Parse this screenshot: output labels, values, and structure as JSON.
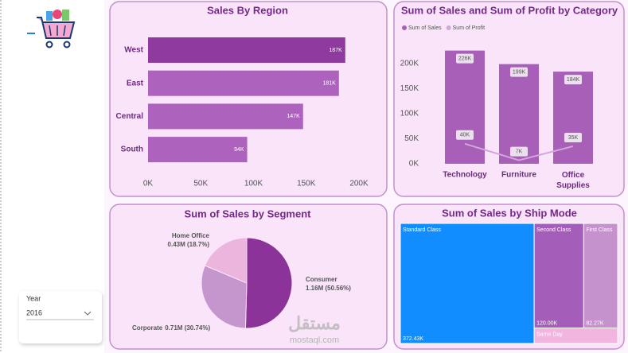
{
  "chart_data": [
    {
      "type": "bar",
      "orientation": "horizontal",
      "title": "Sales By Region",
      "categories": [
        "West",
        "East",
        "Central",
        "South"
      ],
      "values": [
        187000,
        181000,
        147000,
        94000
      ],
      "value_labels": [
        "187K",
        "181K",
        "147K",
        "94K"
      ],
      "colors": [
        "#8e3a9e",
        "#ad62bd",
        "#ad62bd",
        "#ad62bd"
      ],
      "xlim": [
        0,
        200000
      ],
      "xticks": [
        {
          "value": 0,
          "label": "0K"
        },
        {
          "value": 50000,
          "label": "50K"
        },
        {
          "value": 100000,
          "label": "100K"
        },
        {
          "value": 150000,
          "label": "150K"
        },
        {
          "value": 200000,
          "label": "200K"
        }
      ]
    },
    {
      "type": "combo",
      "title": "Sum of Sales and Sum of Profit by Category",
      "categories": [
        "Technology",
        "Furniture",
        "Office Supplies"
      ],
      "series": [
        {
          "name": "Sum of Sales",
          "type": "bar",
          "color": "#a75fb8",
          "values": [
            226000,
            199000,
            184000
          ],
          "value_labels": [
            "226K",
            "199K",
            "184K"
          ]
        },
        {
          "name": "Sum of Profit",
          "type": "line",
          "color": "#d2a6dc",
          "values": [
            40000,
            7000,
            35000
          ],
          "value_labels": [
            "40K",
            "7K",
            "35K"
          ]
        }
      ],
      "ylim": [
        0,
        250000
      ],
      "yticks": [
        {
          "value": 0,
          "label": "0K"
        },
        {
          "value": 50000,
          "label": "50K"
        },
        {
          "value": 100000,
          "label": "100K"
        },
        {
          "value": 150000,
          "label": "150K"
        },
        {
          "value": 200000,
          "label": "200K"
        }
      ]
    },
    {
      "type": "pie",
      "title": "Sum of Sales by Segment",
      "categories": [
        "Consumer",
        "Corporate",
        "Home Office"
      ],
      "values": [
        1160000,
        710000,
        430000
      ],
      "value_labels": [
        "1.16M (50.56%)",
        "0.71M (30.74%)",
        "0.43M (18.7%)"
      ],
      "colors": [
        "#8b3399",
        "#c596cd",
        "#ebb5dd"
      ]
    },
    {
      "type": "treemap",
      "title": "Sum of Sales by Ship Mode",
      "categories": [
        "Standard Class",
        "Second Class",
        "First Class",
        "Same Day"
      ],
      "values": [
        372430,
        120000,
        82270,
        30000
      ],
      "value_labels": [
        "372.43K",
        "120.00K",
        "82.27K",
        null
      ],
      "colors": [
        "#118dff",
        "#a55dba",
        "#c592cd",
        "#f1b5df"
      ]
    }
  ],
  "slicer": {
    "label": "Year",
    "value": "2016"
  },
  "watermark": {
    "script": "مستقل",
    "site": "mostaql.com"
  }
}
